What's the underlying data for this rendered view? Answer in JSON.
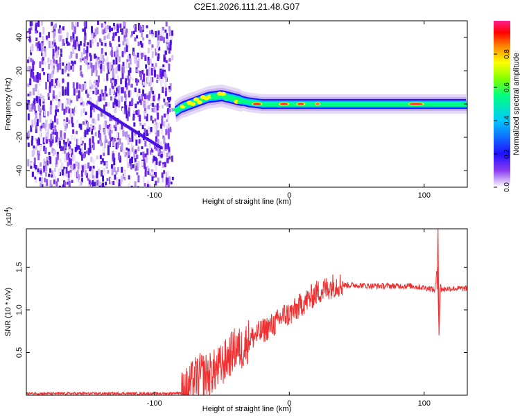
{
  "title": "C2E1.2026.111.21.48.G07",
  "chart_data": [
    {
      "type": "heatmap",
      "xlabel": "Height of straight line (km)",
      "ylabel": "Frequency (Hz)",
      "xlim": [
        -195,
        132
      ],
      "ylim": [
        -50,
        50
      ],
      "xticks": [
        -100,
        0,
        100
      ],
      "xtick_labels": [
        "-100",
        "0",
        "100"
      ],
      "yticks": [
        40,
        20,
        0,
        -20,
        -40
      ],
      "ytick_labels": [
        "40",
        "20",
        "0",
        "-20",
        "-40"
      ],
      "noise_region_x": [
        -195,
        -85
      ],
      "signal_centerline": [
        [
          -85,
          -5
        ],
        [
          -80,
          -2
        ],
        [
          -70,
          1
        ],
        [
          -60,
          4
        ],
        [
          -50,
          5
        ],
        [
          -40,
          3
        ],
        [
          -30,
          1
        ],
        [
          -20,
          0
        ],
        [
          0,
          0
        ],
        [
          50,
          0
        ],
        [
          100,
          0
        ],
        [
          132,
          0
        ]
      ],
      "colorbar": {
        "label": "Normalized spectral amplitude",
        "range": [
          0,
          1
        ],
        "ticks": [
          0,
          0.2,
          0.4,
          0.6,
          0.8
        ],
        "tick_labels": [
          "0.0",
          "0.2",
          "0.4",
          "0.6",
          "0.8"
        ],
        "colors": [
          "#ffffff",
          "#c8b4f0",
          "#8a3cf0",
          "#2010ff",
          "#00c8ff",
          "#00ff80",
          "#80ff00",
          "#ffff00",
          "#ff8000",
          "#ff0000",
          "#ff2090"
        ]
      }
    },
    {
      "type": "line",
      "xlabel": "Height of straight line (km)",
      "ylabel": "SNR (10 * v/v)",
      "scale_label": "(x10",
      "scale_exp": "4",
      "scale_close": ")",
      "xlim": [
        -195,
        132
      ],
      "ylim": [
        0,
        19500
      ],
      "xticks": [
        -100,
        0,
        100
      ],
      "xtick_labels": [
        "-100",
        "0",
        "100"
      ],
      "yticks": [
        5000,
        10000,
        15000
      ],
      "ytick_labels": [
        "0.5",
        "1.0",
        "1.5"
      ],
      "line_color": "#f03030",
      "series": [
        {
          "name": "SNR",
          "x": [
            -195,
            -150,
            -100,
            -90,
            -80,
            -75,
            -70,
            -65,
            -60,
            -55,
            -50,
            -45,
            -40,
            -35,
            -30,
            -25,
            -20,
            -15,
            -10,
            -5,
            0,
            5,
            10,
            15,
            20,
            25,
            30,
            35,
            40,
            50,
            60,
            70,
            80,
            90,
            100,
            105,
            108,
            110,
            111,
            112,
            114,
            118,
            125,
            132
          ],
          "y": [
            200,
            200,
            200,
            200,
            300,
            900,
            2000,
            2500,
            2400,
            2900,
            3500,
            4500,
            5500,
            5400,
            6500,
            7000,
            7500,
            8000,
            8400,
            9300,
            9500,
            10000,
            10800,
            11300,
            12000,
            12300,
            12700,
            13000,
            12900,
            12900,
            12800,
            12800,
            12800,
            12800,
            12600,
            12500,
            12300,
            15000,
            7200,
            12600,
            12400,
            12500,
            12500,
            12500
          ]
        }
      ]
    }
  ]
}
